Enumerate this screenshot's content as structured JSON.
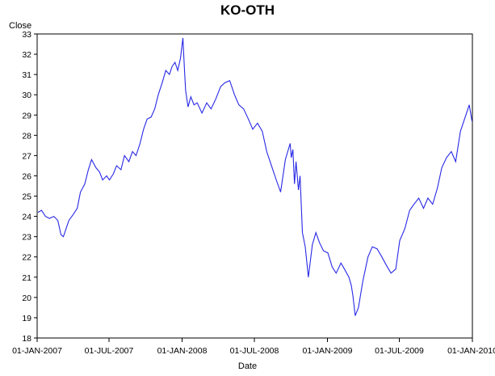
{
  "chart_data": {
    "type": "line",
    "title": "KO-OTH",
    "xlabel": "Date",
    "ylabel": "Close",
    "ylim": [
      18,
      33
    ],
    "xlim": [
      "2007-01-01",
      "2010-01-01"
    ],
    "y_ticks": [
      18,
      19,
      20,
      21,
      22,
      23,
      24,
      25,
      26,
      27,
      28,
      29,
      30,
      31,
      32,
      33
    ],
    "x_ticks": [
      {
        "date": "2007-01-01",
        "label": "01-JAN-2007"
      },
      {
        "date": "2007-07-01",
        "label": "01-JUL-2007"
      },
      {
        "date": "2008-01-01",
        "label": "01-JAN-2008"
      },
      {
        "date": "2008-07-01",
        "label": "01-JUL-2008"
      },
      {
        "date": "2009-01-01",
        "label": "01-JAN-2009"
      },
      {
        "date": "2009-07-01",
        "label": "01-JUL-2009"
      },
      {
        "date": "2010-01-01",
        "label": "01-JAN-2010"
      }
    ],
    "grid": false,
    "line_color": "#2828e6",
    "series": [
      {
        "x": [
          "2007-01-03",
          "2007-01-12",
          "2007-01-22",
          "2007-02-01",
          "2007-02-12",
          "2007-02-22",
          "2007-03-02",
          "2007-03-08",
          "2007-03-15",
          "2007-03-22",
          "2007-04-02",
          "2007-04-12",
          "2007-04-20",
          "2007-05-01",
          "2007-05-10",
          "2007-05-18",
          "2007-05-29",
          "2007-06-07",
          "2007-06-15",
          "2007-06-25",
          "2007-07-02",
          "2007-07-12",
          "2007-07-20",
          "2007-07-31",
          "2007-08-09",
          "2007-08-20",
          "2007-08-29",
          "2007-09-07",
          "2007-09-17",
          "2007-09-26",
          "2007-10-05",
          "2007-10-15",
          "2007-10-24",
          "2007-11-02",
          "2007-11-12",
          "2007-11-21",
          "2007-11-30",
          "2007-12-07",
          "2007-12-14",
          "2007-12-21",
          "2007-12-28",
          "2008-01-03",
          "2008-01-07",
          "2008-01-10",
          "2008-01-16",
          "2008-01-23",
          "2008-01-31",
          "2008-02-08",
          "2008-02-20",
          "2008-03-03",
          "2008-03-14",
          "2008-03-26",
          "2008-04-07",
          "2008-04-18",
          "2008-04-30",
          "2008-05-12",
          "2008-05-23",
          "2008-06-04",
          "2008-06-16",
          "2008-06-27",
          "2008-07-09",
          "2008-07-21",
          "2008-08-01",
          "2008-08-13",
          "2008-08-25",
          "2008-09-05",
          "2008-09-17",
          "2008-09-29",
          "2008-10-02",
          "2008-10-06",
          "2008-10-10",
          "2008-10-14",
          "2008-10-20",
          "2008-10-24",
          "2008-10-30",
          "2008-11-06",
          "2008-11-14",
          "2008-11-24",
          "2008-12-03",
          "2008-12-12",
          "2008-12-22",
          "2009-01-02",
          "2009-01-13",
          "2009-01-23",
          "2009-02-04",
          "2009-02-13",
          "2009-02-24",
          "2009-03-02",
          "2009-03-06",
          "2009-03-12",
          "2009-03-20",
          "2009-03-31",
          "2009-04-13",
          "2009-04-24",
          "2009-05-06",
          "2009-05-18",
          "2009-05-29",
          "2009-06-10",
          "2009-06-22",
          "2009-07-02",
          "2009-07-15",
          "2009-07-27",
          "2009-08-07",
          "2009-08-19",
          "2009-08-31",
          "2009-09-11",
          "2009-09-23",
          "2009-10-05",
          "2009-10-16",
          "2009-10-28",
          "2009-11-09",
          "2009-11-20",
          "2009-12-02",
          "2009-12-14",
          "2009-12-24",
          "2009-12-31"
        ],
        "y": [
          24.2,
          24.3,
          24.0,
          23.9,
          24.0,
          23.8,
          23.1,
          23.0,
          23.4,
          23.8,
          24.1,
          24.4,
          25.2,
          25.6,
          26.3,
          26.8,
          26.4,
          26.2,
          25.8,
          26.0,
          25.8,
          26.1,
          26.5,
          26.3,
          27.0,
          26.7,
          27.2,
          27.0,
          27.6,
          28.3,
          28.8,
          28.9,
          29.3,
          30.0,
          30.6,
          31.2,
          31.0,
          31.4,
          31.6,
          31.2,
          31.8,
          32.8,
          31.2,
          30.2,
          29.4,
          29.9,
          29.5,
          29.6,
          29.1,
          29.6,
          29.3,
          29.8,
          30.4,
          30.6,
          30.7,
          30.0,
          29.5,
          29.3,
          28.8,
          28.3,
          28.6,
          28.2,
          27.2,
          26.5,
          25.8,
          25.2,
          26.8,
          27.6,
          26.9,
          27.3,
          25.6,
          26.7,
          25.3,
          26.0,
          23.2,
          22.5,
          21.0,
          22.6,
          23.2,
          22.7,
          22.3,
          22.2,
          21.5,
          21.2,
          21.7,
          21.4,
          21.0,
          20.6,
          20.1,
          19.1,
          19.5,
          20.8,
          22.0,
          22.5,
          22.4,
          22.0,
          21.6,
          21.2,
          21.4,
          22.8,
          23.4,
          24.3,
          24.6,
          24.9,
          24.4,
          24.9,
          24.6,
          25.4,
          26.4,
          26.9,
          27.2,
          26.7,
          28.2,
          28.9,
          29.5,
          28.7
        ]
      }
    ]
  }
}
